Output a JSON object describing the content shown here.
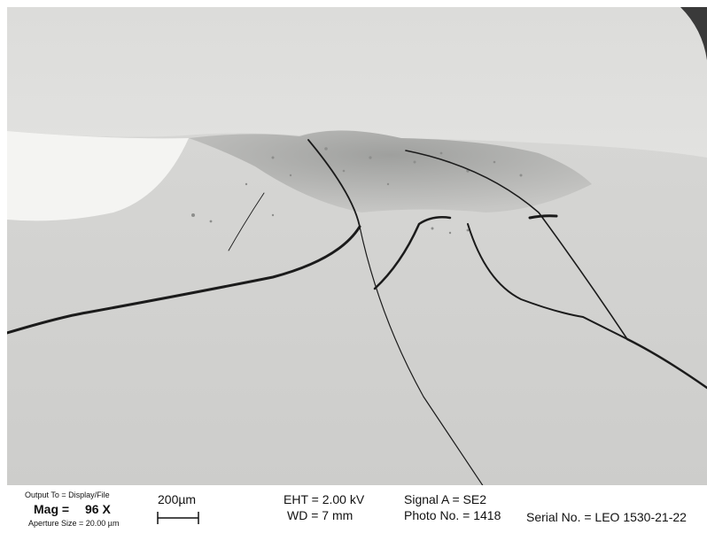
{
  "colors": {
    "background": "#c9c9c7",
    "bright_region": "#f2f2f0",
    "crack": "#1b1b1b",
    "coating": "#a9aaa8"
  },
  "databar": {
    "output": "Output To = Display/File",
    "mag_label": "Mag =",
    "mag_value": "96 X",
    "aperture": "Aperture Size = 20.00 µm",
    "scale_label": "200µm",
    "eht": "EHT = 2.00 kV",
    "wd": "WD = 7 mm",
    "signal": "Signal A = SE2",
    "photo": "Photo No. = 1418",
    "serial": "Serial No. = LEO 1530-21-22"
  }
}
